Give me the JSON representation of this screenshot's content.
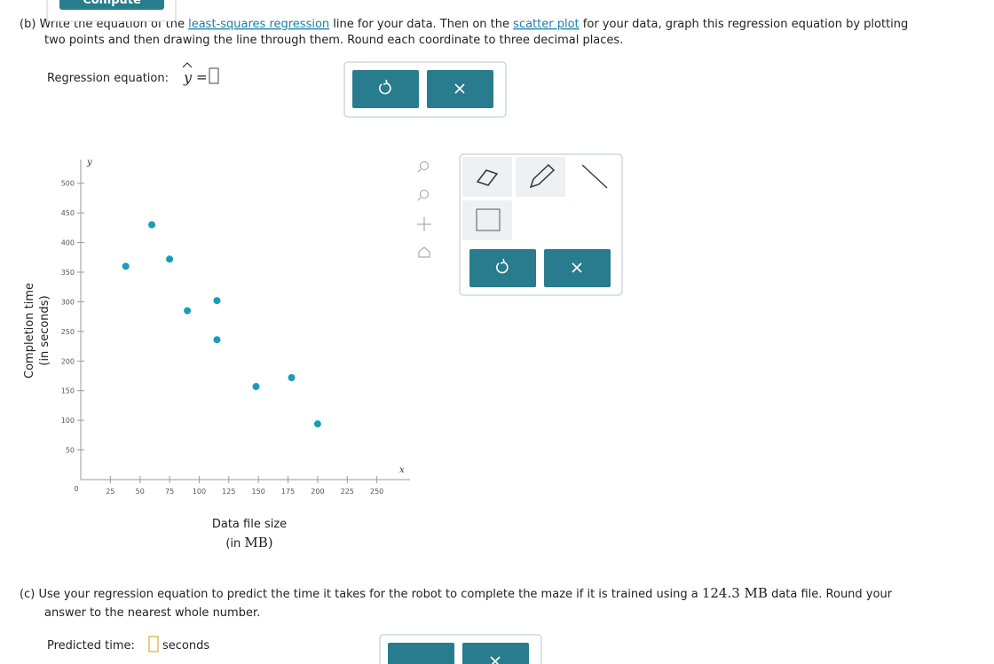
{
  "compute_button": "Compute",
  "part_b": {
    "label": "(b)",
    "text1": "Write the equation of the",
    "link1": "least-squares regression",
    "text2": "line for your data. Then on the",
    "link2": "scatter plot",
    "text3": "for your data, graph this regression equation by plotting",
    "text4": "two points and then drawing the line through them. Round each coordinate to three decimal places.",
    "equation_label": "Regression equation:",
    "equation_var": "y",
    "equals": "="
  },
  "graph": {
    "y_axis_title": [
      "Completion time",
      "(in seconds)"
    ],
    "x_axis_title": "Data file size",
    "x_axis_unit_open": "(in",
    "x_axis_unit": "MB)",
    "x_axis_letter": "x",
    "y_axis_letter": "y",
    "origin_label": "0",
    "marker_color": "#1a9cb8",
    "xlim": [
      0,
      278
    ],
    "ylim": [
      0,
      540
    ],
    "xticks": [
      25,
      50,
      75,
      100,
      125,
      150,
      175,
      200,
      225,
      250
    ],
    "yticks": [
      50,
      100,
      150,
      200,
      250,
      300,
      350,
      400,
      450,
      500
    ],
    "x": [
      38,
      60,
      75,
      90,
      115,
      115,
      148,
      178,
      200
    ],
    "y": [
      360,
      430,
      372,
      285,
      302,
      236,
      157,
      172,
      94
    ]
  },
  "part_c": {
    "label": "(c)",
    "text1": "Use your regression equation to predict the time it takes for the robot to complete the maze if it is trained using a",
    "size": "124.3 MB",
    "text2": "data file. Round your",
    "text3": "answer to the nearest whole number.",
    "predicted_label": "Predicted time:",
    "unit": "seconds"
  }
}
